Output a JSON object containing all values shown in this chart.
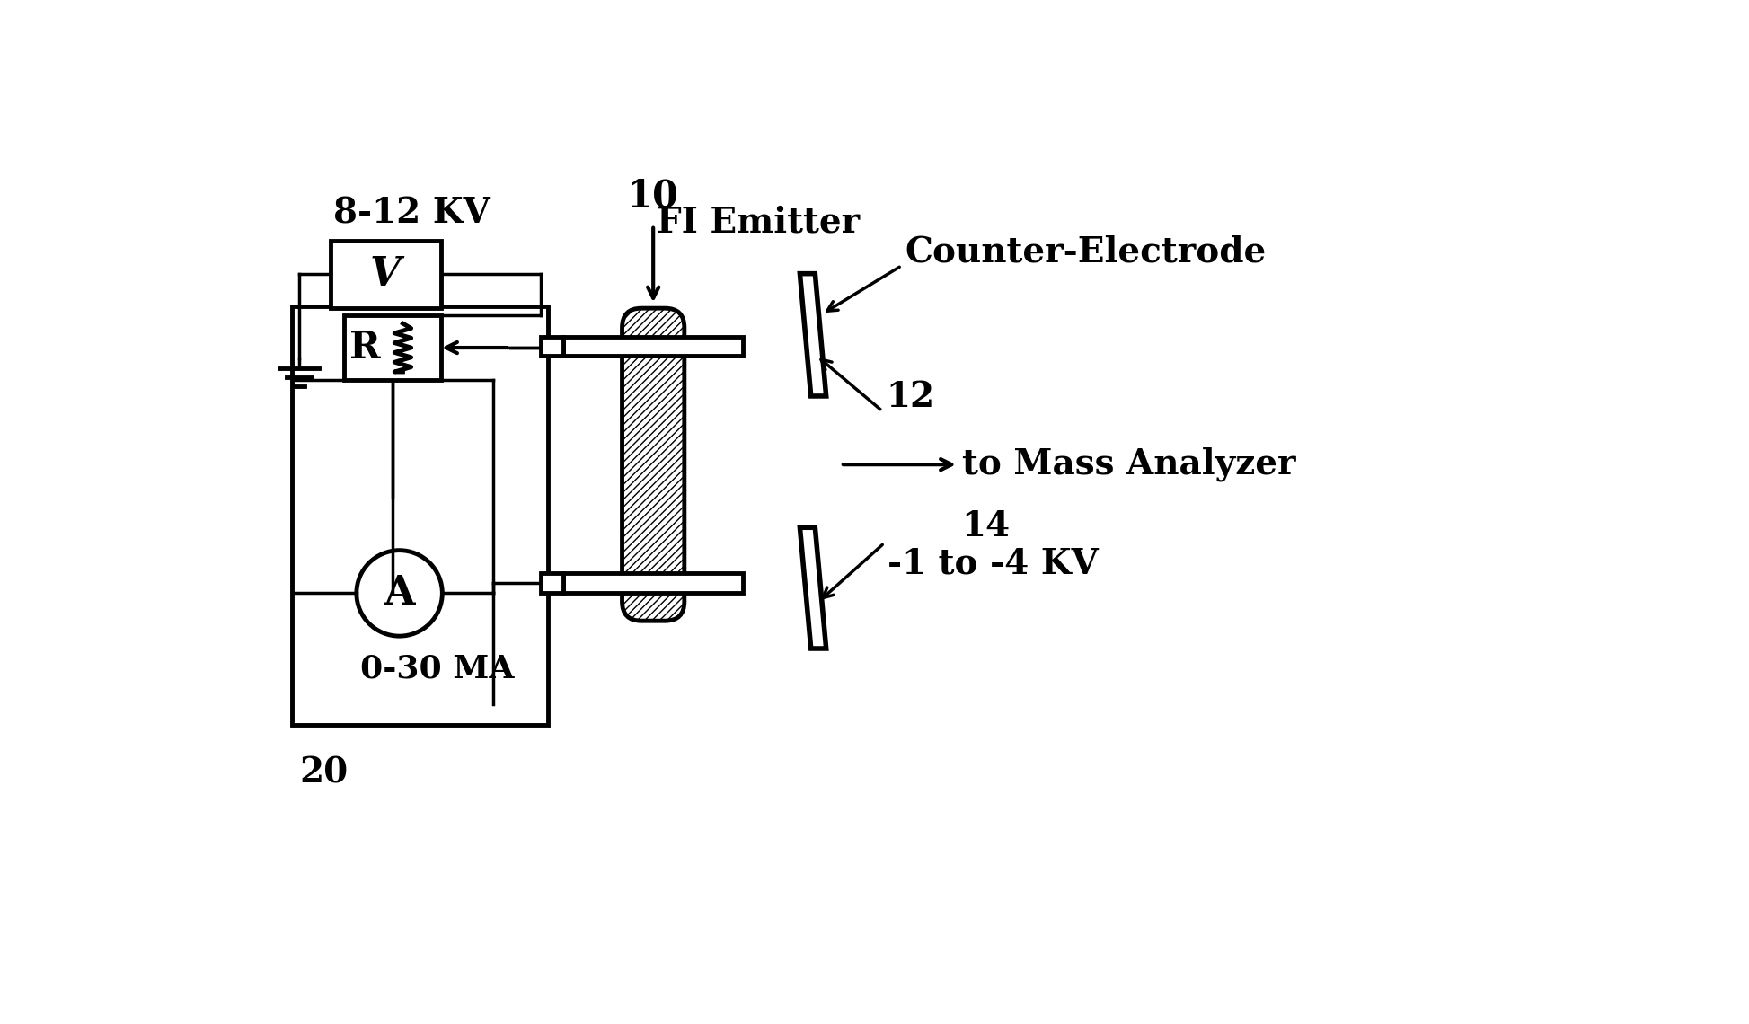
{
  "bg_color": "#ffffff",
  "line_color": "#000000",
  "lw": 2.5,
  "tlw": 3.5,
  "fig_width": 19.47,
  "fig_height": 11.4,
  "labels": {
    "voltage": "8-12 KV",
    "fi_emitter_num": "10",
    "fi_emitter": "FI Emitter",
    "counter_electrode": "Counter-Electrode",
    "num12": "12",
    "mass_analyzer": "to Mass Analyzer",
    "num14": "14",
    "ammeter_label": "0-30 MA",
    "num20": "20",
    "neg_voltage": "-1 to -4 KV",
    "R_label": "R",
    "A_label": "A",
    "V_label": "V"
  },
  "font_size": 26
}
